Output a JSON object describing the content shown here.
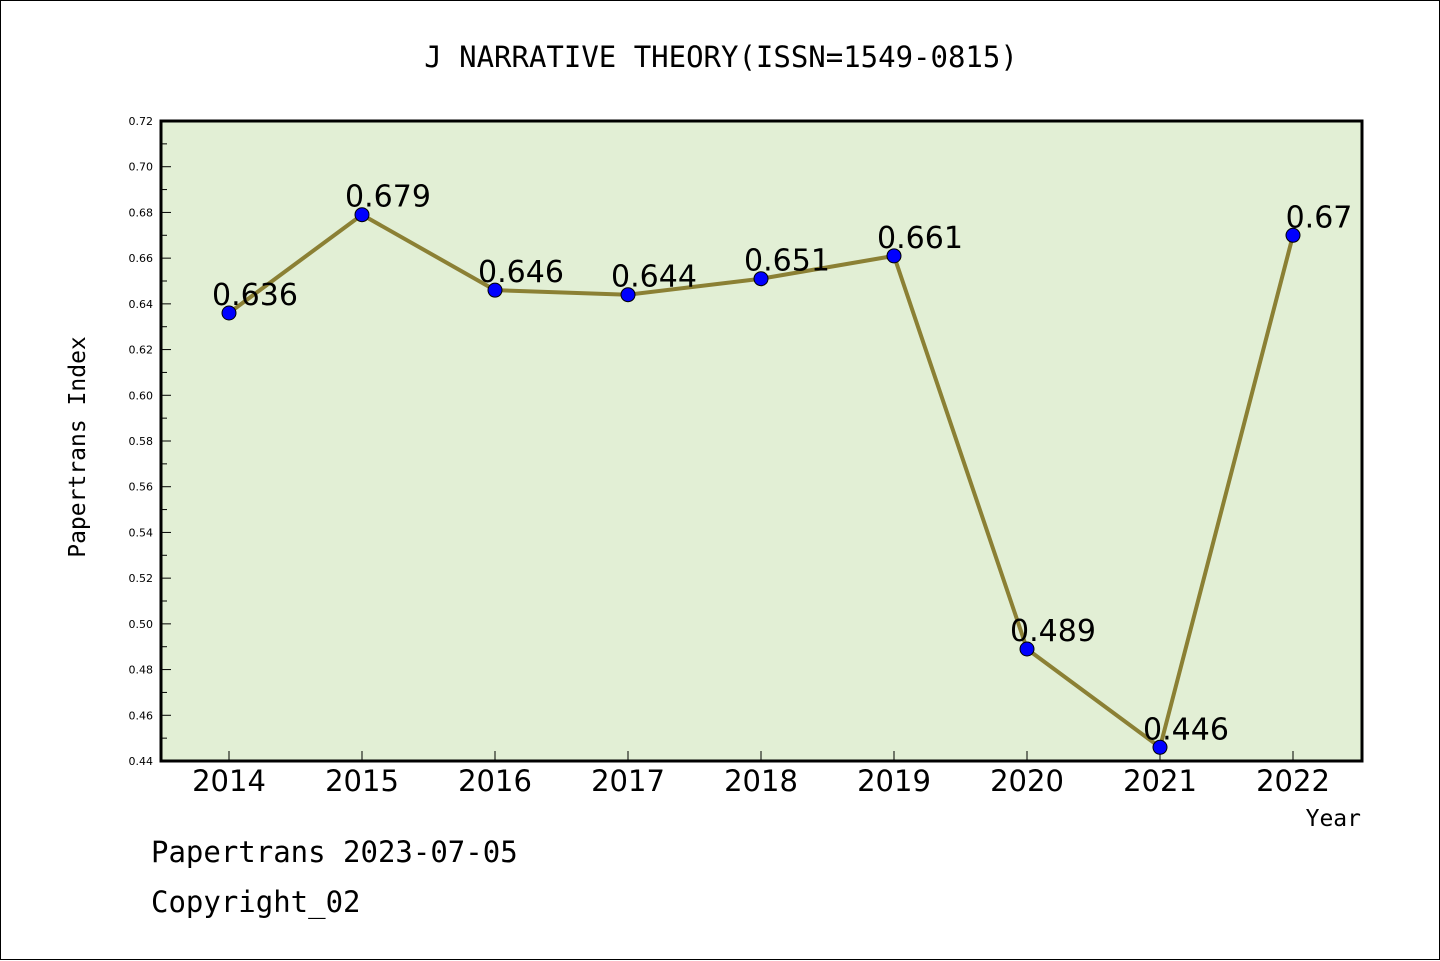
{
  "chart_data": {
    "type": "line",
    "title": "J NARRATIVE THEORY(ISSN=1549-0815)",
    "xlabel": "Year",
    "ylabel": "Papertrans Index",
    "categories": [
      "2014",
      "2015",
      "2016",
      "2017",
      "2018",
      "2019",
      "2020",
      "2021",
      "2022"
    ],
    "series": [
      {
        "values": [
          0.636,
          0.679,
          0.646,
          0.644,
          0.651,
          0.661,
          0.489,
          0.446,
          0.67
        ],
        "labels": [
          "0.636",
          "0.679",
          "0.646",
          "0.644",
          "0.651",
          "0.661",
          "0.489",
          "0.446",
          "0.67"
        ]
      }
    ],
    "ylim": [
      0.44,
      0.72
    ],
    "yticks": [
      "0.44",
      "0.46",
      "0.48",
      "0.50",
      "0.52",
      "0.54",
      "0.56",
      "0.58",
      "0.60",
      "0.62",
      "0.64",
      "0.66",
      "0.68",
      "0.70",
      "0.72"
    ],
    "grid": false,
    "legend": "none",
    "colors": {
      "plot_background": "#e2efd5",
      "line": "#8b8034",
      "marker": "#0000ff"
    }
  },
  "footer": {
    "date_line": "Papertrans 2023-07-05",
    "copyright": "Copyright_02"
  }
}
